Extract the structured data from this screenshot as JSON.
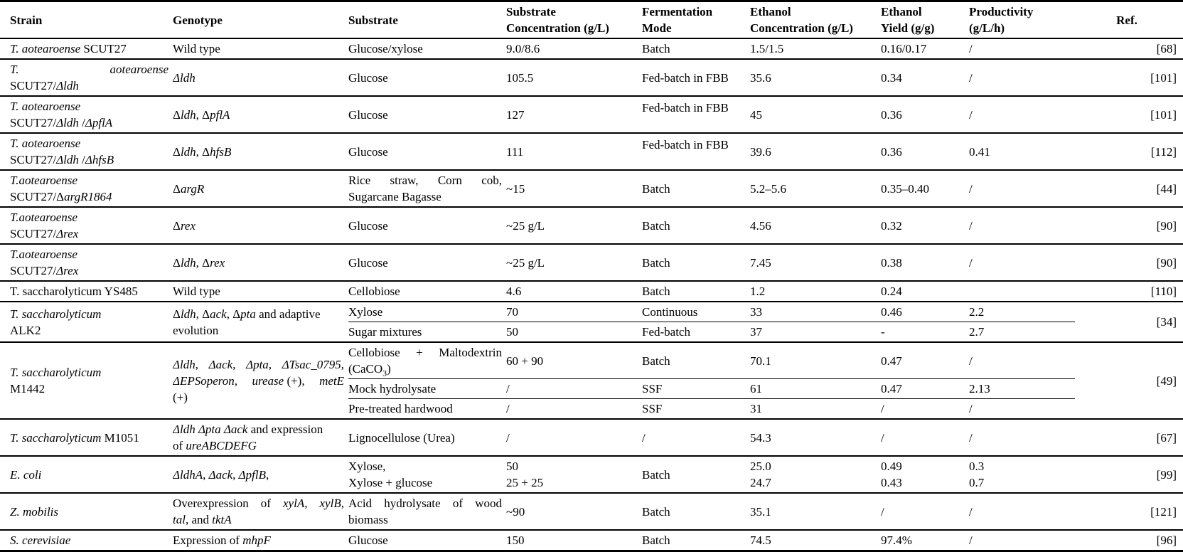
{
  "page": {
    "background": "#ffffff",
    "text_color": "#000000"
  },
  "table": {
    "headers": {
      "strain": "Strain",
      "genotype": "Genotype",
      "substrate": "Substrate",
      "substrate_conc": "Substrate\nConcentration (g/L)",
      "mode": "Fermentation\nMode",
      "ethanol_conc": "Ethanol\nConcentration (g/L)",
      "yield": "Ethanol\nYield (g/g)",
      "productivity": "Productivity\n(g/L/h)",
      "ref": "Ref."
    },
    "rows": [
      {
        "strain": "<i>T. aotearoense</i> SCUT27",
        "genotype": "Wild type",
        "substrate": "Glucose/xylose",
        "conc": "9.0/8.6",
        "mode": "Batch",
        "ethanol": "1.5/1.5",
        "yield": "0.16/0.17",
        "productivity": "/",
        "ref": "[68]"
      },
      {
        "strain": "<div class='sb'><span><i>T.</i></span><span><i>aotearoense</i></span></div><div>SCUT27/<i>Δldh</i></div>",
        "genotype": "<i>Δldh</i>",
        "substrate": "Glucose",
        "conc": "105.5",
        "mode": "Fed-batch in FBB",
        "ethanol": "35.6",
        "yield": "0.34",
        "productivity": "/",
        "ref": "[101]"
      },
      {
        "strain": "<i>T. aotearoense</i><br>SCUT27/<i>Δldh</i> /<i>ΔpflA</i>",
        "genotype": "Δ<i>ldh</i>, Δ<i>pflA</i>",
        "substrate": "Glucose",
        "conc": "127",
        "mode": "Fed-batch in FBB",
        "ethanol": "45",
        "yield": "0.36",
        "productivity": "/",
        "ref": "[101]"
      },
      {
        "strain": "<i>T. aotearoense</i><br>SCUT27/<i>Δldh</i> /<i>ΔhfsB</i>",
        "genotype": "Δ<i>ldh</i>, Δ<i>hfsB</i>",
        "substrate": "Glucose",
        "conc": "111",
        "mode": "Fed-batch in FBB",
        "ethanol": "39.6",
        "yield": "0.36",
        "productivity": "0.41",
        "ref": "[112]"
      },
      {
        "strain": "<i>T.aotearoense</i><br>SCUT27/Δ<i>argR1864</i>",
        "genotype": "Δ<i>argR</i>",
        "substrate": "<div class='sb'><span>Rice</span><span>straw,</span><span>Corn</span><span>cob,</span></div><div>Sugarcane Bagasse</div>",
        "conc": "~15",
        "mode": "Batch",
        "ethanol": "5.2–5.6",
        "yield": "0.35–0.40",
        "productivity": "/",
        "ref": "[44]"
      },
      {
        "strain": "<i>T.aotearoense</i><br>SCUT27/<i>Δrex</i>",
        "genotype": "Δ<i>rex</i>",
        "substrate": "Glucose",
        "conc": "~25 g/L",
        "mode": "Batch",
        "ethanol": "4.56",
        "yield": "0.32",
        "productivity": "/",
        "ref": "[90]"
      },
      {
        "strain": "<i>T.aotearoense</i><br>SCUT27/<i>Δrex</i>",
        "genotype": "Δ<i>ldh</i>, Δ<i>rex</i>",
        "substrate": "Glucose",
        "conc": "~25 g/L",
        "mode": "Batch",
        "ethanol": "7.45",
        "yield": "0.38",
        "productivity": "/",
        "ref": "[90]"
      },
      {
        "strain": "T. saccharolyticum YS485",
        "genotype": "Wild type",
        "substrate": "Cellobiose",
        "conc": "4.6",
        "mode": "Batch",
        "ethanol": "1.2",
        "yield": "0.24",
        "productivity": "",
        "ref": "[110]"
      },
      {
        "strain": "<i>T. saccharolyticum</i><br>ALK2",
        "genotype": "Δ<i>ldh</i>, Δ<i>ack</i>, Δ<i>pta</i> and adaptive<br>evolution",
        "substrate": "Xylose",
        "conc": "70",
        "mode": "Continuous",
        "ethanol": "33",
        "yield": "0.46",
        "productivity": "2.2",
        "ref": "[34]"
      },
      {
        "substrate": "Sugar mixtures",
        "conc": "50",
        "mode": "Fed-batch",
        "ethanol": "37",
        "yield": "-",
        "productivity": "2.7"
      },
      {
        "strain": "<i>T. saccharolyticum</i><br>M1442",
        "genotype": "<div class='sb'><span><i>Δldh</i>,</span><span><i>Δack</i>,</span><span><i>Δpta</i>,</span><span><i>ΔTsac_0795</i>,</span></div><div class='sb'><span><i>ΔEPSoperon</i>,</span><span><i>urease</i> (+),</span><span><i>metE</i></span></div><div>(+)</div>",
        "substrate": "<div class='sb'><span>Cellobiose</span><span>+</span><span>Maltodextrin</span></div><div>(CaCO<sub>3</sub>)</div>",
        "conc": "60 + 90",
        "mode": "Batch",
        "ethanol": "70.1",
        "yield": "0.47",
        "productivity": "/",
        "ref": "[49]"
      },
      {
        "substrate": "Mock hydrolysate",
        "conc": "/",
        "mode": "SSF",
        "ethanol": "61",
        "yield": "0.47",
        "productivity": "2.13"
      },
      {
        "substrate": "Pre-treated hardwood",
        "conc": "/",
        "mode": "SSF",
        "ethanol": "31",
        "yield": "/",
        "productivity": "/"
      },
      {
        "strain": "<i>T. saccharolyticum</i> M1051",
        "genotype": "<i>Δldh</i> <i>Δpta</i> <i>Δack</i> and expression<br>of <i>ureABCDEFG</i>",
        "substrate": "Lignocellulose (Urea)",
        "conc": "/",
        "mode": "/",
        "ethanol": "54.3",
        "yield": "/",
        "productivity": "/",
        "ref": "[67]"
      },
      {
        "strain": "<i>E. coli</i>",
        "genotype": "<i>ΔldhA</i>, <i>Δack</i>, <i>ΔpflB</i>,",
        "substrate": "Xylose,<br>Xylose + glucose",
        "conc": "50\n25 + 25",
        "mode": "Batch",
        "ethanol": "25.0\n24.7",
        "yield": "0.49\n0.43",
        "productivity": "0.3\n0.7",
        "ref": "[99]"
      },
      {
        "strain": "<i>Z. mobilis</i>",
        "genotype": "<div class='sb'><span>Overexpression</span><span>of</span><span><i>xylA</i>,</span><span><i>xylB</i>,</span></div><div><i>tal</i>, and <i>tktA</i></div>",
        "substrate": "<div class='sb'><span>Acid</span><span>hydrolysate</span><span>of</span><span>wood</span></div><div>biomass</div>",
        "conc": "~90",
        "mode": "Batch",
        "ethanol": "35.1",
        "yield": "/",
        "productivity": "/",
        "ref": "[121]"
      },
      {
        "strain": "<i>S. cerevisiae</i>",
        "genotype": "Expression of <i>mhpF</i>",
        "substrate": "Glucose",
        "conc": "150",
        "mode": "Batch",
        "ethanol": "74.5",
        "yield": "97.4%",
        "productivity": "/",
        "ref": "[96]"
      }
    ]
  }
}
